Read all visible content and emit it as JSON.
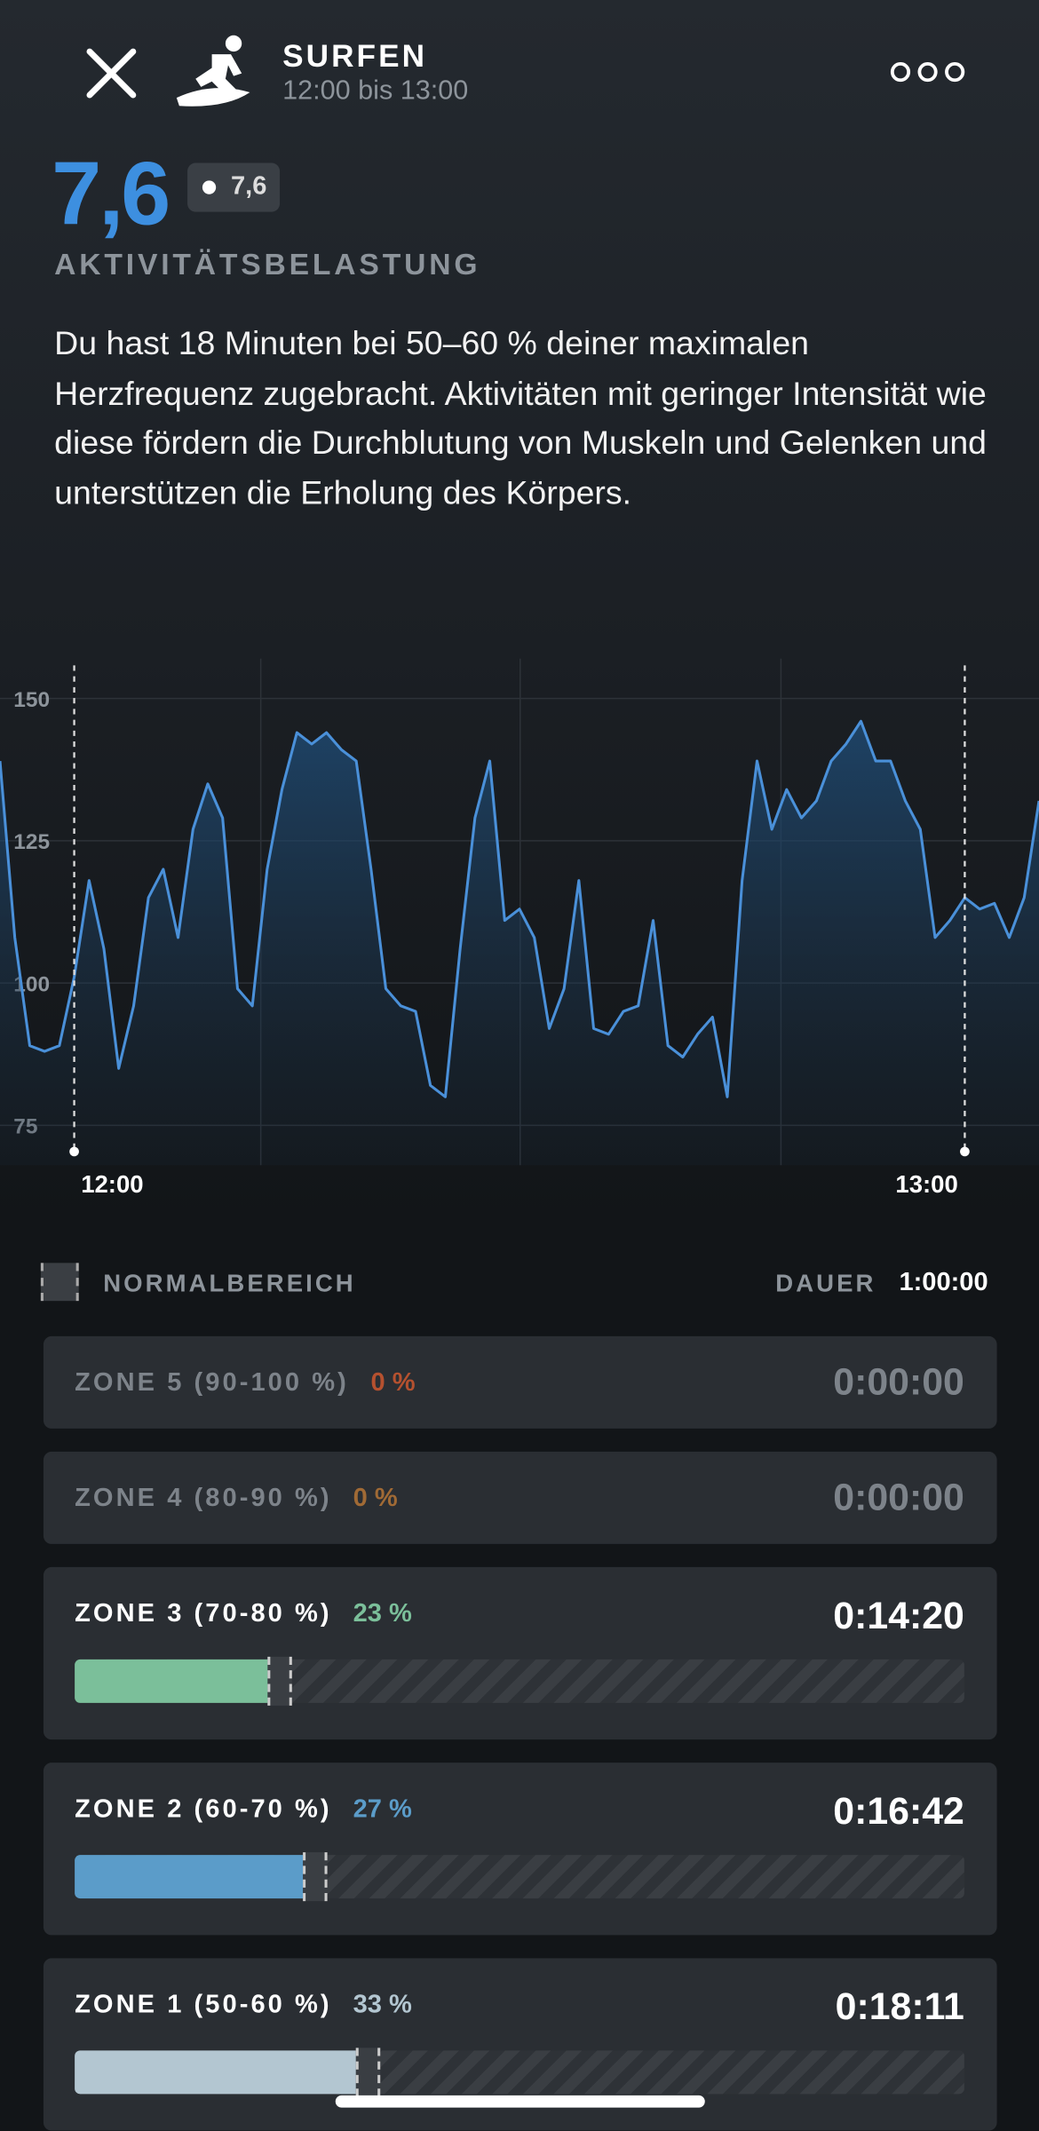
{
  "header": {
    "title": "SURFEN",
    "subtitle": "12:00 bis 13:00"
  },
  "score": {
    "value": "7,6",
    "badge": "7,6",
    "label": "AKTIVITÄTSBELASTUNG"
  },
  "description": "Du hast 18 Minuten bei 50–60 % deiner maximalen Herzfrequenz zugebracht. Aktivitäten mit geringer Intensität wie diese fördern die Durchblutung von Muskeln und Gelenken und unterstützen die Erholung des Körpers.",
  "chart_data": {
    "type": "line",
    "color": "#4a90d9",
    "x": [
      -5,
      -4,
      -3,
      -2,
      -1,
      0,
      1,
      2,
      3,
      4,
      5,
      6,
      7,
      8,
      9,
      10,
      11,
      12,
      13,
      14,
      15,
      16,
      17,
      18,
      19,
      20,
      21,
      22,
      23,
      24,
      25,
      26,
      27,
      28,
      29,
      30,
      31,
      32,
      33,
      34,
      35,
      36,
      37,
      38,
      39,
      40,
      41,
      42,
      43,
      44,
      45,
      46,
      47,
      48,
      49,
      50,
      51,
      52,
      53,
      54,
      55,
      56,
      57,
      58,
      59,
      60,
      61,
      62,
      63,
      64,
      65
    ],
    "values": [
      139,
      108,
      89,
      88,
      89,
      101,
      118,
      106,
      85,
      96,
      115,
      120,
      108,
      127,
      135,
      129,
      99,
      96,
      120,
      134,
      144,
      142,
      144,
      141,
      139,
      120,
      99,
      96,
      95,
      82,
      80,
      106,
      129,
      139,
      111,
      113,
      108,
      92,
      99,
      118,
      92,
      91,
      95,
      96,
      111,
      89,
      87,
      91,
      94,
      80,
      118,
      139,
      127,
      134,
      129,
      132,
      139,
      142,
      146,
      139,
      139,
      132,
      127,
      108,
      111,
      115,
      113,
      114,
      108,
      115,
      132
    ],
    "xlim": [
      -5,
      65
    ],
    "ylim": [
      68,
      157
    ],
    "xticks": [
      {
        "value": 0,
        "label": "12:00"
      },
      {
        "value": 60,
        "label": "13:00"
      }
    ],
    "yticks": [
      75,
      100,
      125,
      150
    ],
    "grid": true
  },
  "legend": {
    "normal": "NORMALBEREICH",
    "duration_label": "DAUER",
    "duration": "1:00:00"
  },
  "zones": [
    {
      "name": "ZONE 5 (90-100 %)",
      "percent": 0,
      "percent_label": "0 %",
      "duration": "0:00:00",
      "color": "#b5512f"
    },
    {
      "name": "ZONE 4 (80-90 %)",
      "percent": 0,
      "percent_label": "0 %",
      "duration": "0:00:00",
      "color": "#a06a35"
    },
    {
      "name": "ZONE 3 (70-80 %)",
      "percent": 23,
      "percent_label": "23 %",
      "duration": "0:14:20",
      "color": "#7bbf9a"
    },
    {
      "name": "ZONE 2 (60-70 %)",
      "percent": 27,
      "percent_label": "27 %",
      "duration": "0:16:42",
      "color": "#5b9cc9"
    },
    {
      "name": "ZONE 1 (50-60 %)",
      "percent": 33,
      "percent_label": "33 %",
      "duration": "0:18:11",
      "color": "#b3c6d1"
    }
  ]
}
